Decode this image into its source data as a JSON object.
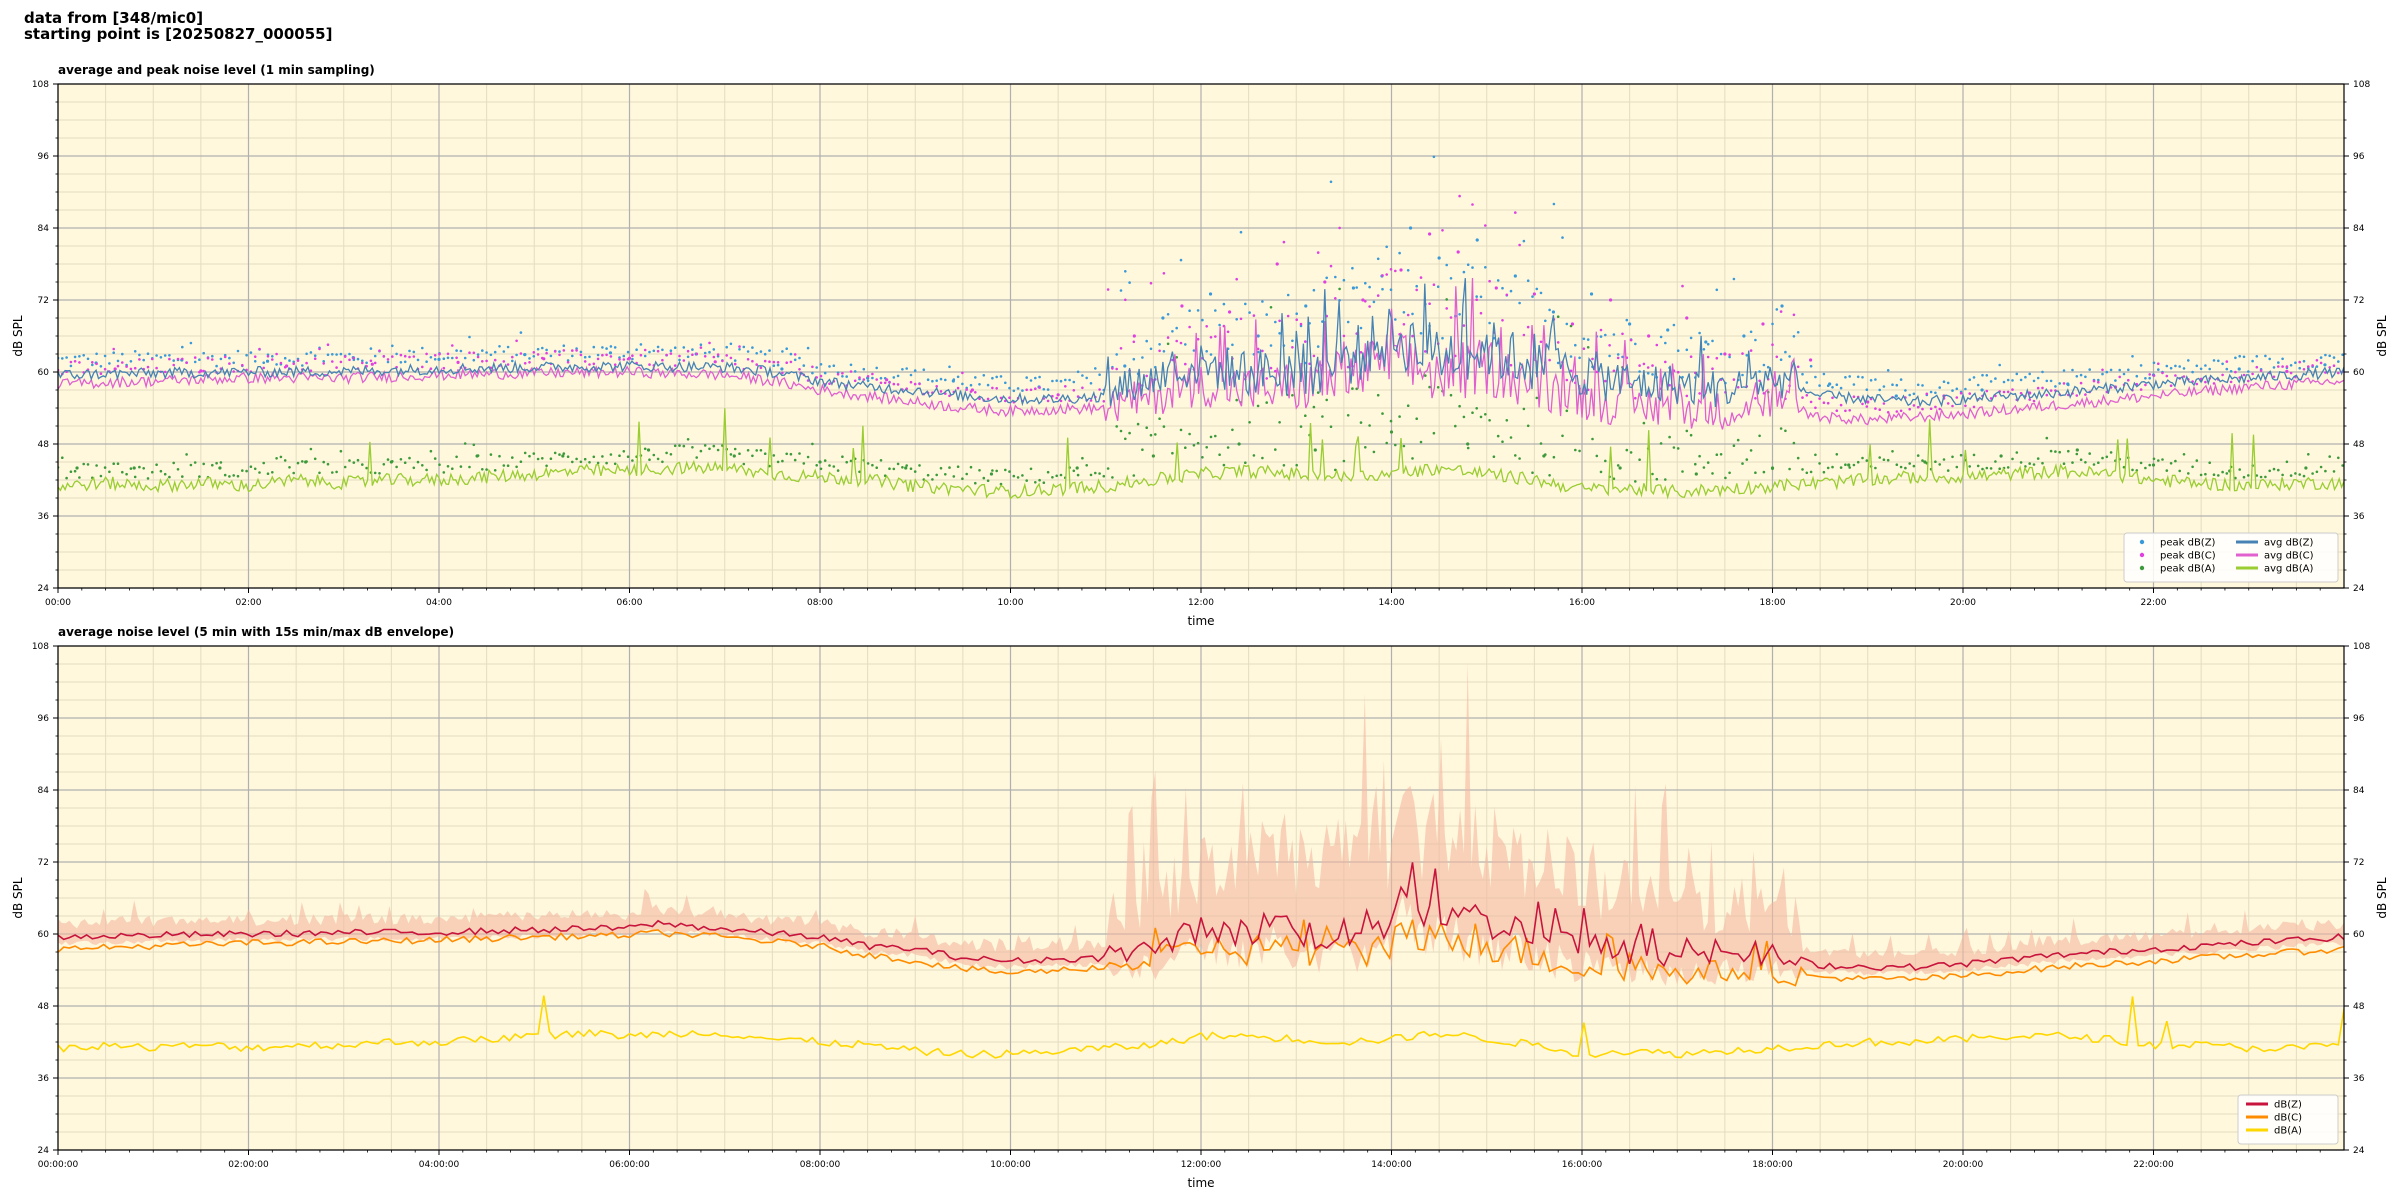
{
  "header": {
    "line1": "data from [348/mic0]",
    "line2": "starting point is [20250827_000055]"
  },
  "colors": {
    "plot_bg": "#fff8dc",
    "grid_major": "#b0b0b0",
    "grid_minor": "#e4dcc0",
    "zpeak": "#3a9ad9",
    "cpeak": "#e040e0",
    "apeak": "#3c9a3c",
    "zavg": "#4682b4",
    "cavg": "#e060d0",
    "aavg": "#9acd32",
    "dBZ": "#c8143c",
    "dBC": "#ff8c00",
    "dBA": "#ffd700",
    "envelope": "#f4b8a0"
  },
  "chart_data": [
    {
      "type": "line",
      "title": "average and peak noise level (1 min sampling)",
      "xlabel": "time",
      "ylabel": "dB SPL",
      "xlim": [
        0,
        24
      ],
      "ylim": [
        24,
        108
      ],
      "yticks": [
        "24",
        "36",
        "48",
        "60",
        "72",
        "84",
        "96",
        "108"
      ],
      "xticks": [
        "00:00",
        "02:00",
        "04:00",
        "06:00",
        "08:00",
        "10:00",
        "12:00",
        "14:00",
        "16:00",
        "18:00",
        "20:00",
        "22:00"
      ],
      "grid": true,
      "legend_position": "lower-right",
      "legend": [
        {
          "label": "peak dB(Z)",
          "marker": "dot",
          "color_key": "zpeak"
        },
        {
          "label": "peak dB(C)",
          "marker": "dot",
          "color_key": "cpeak"
        },
        {
          "label": "peak dB(A)",
          "marker": "dot",
          "color_key": "apeak"
        },
        {
          "label": "avg dB(Z)",
          "marker": "line",
          "color_key": "zavg"
        },
        {
          "label": "avg dB(C)",
          "marker": "line",
          "color_key": "cavg"
        },
        {
          "label": "avg dB(A)",
          "marker": "line",
          "color_key": "aavg"
        }
      ],
      "series": [
        {
          "key": "zavg",
          "x": [
            0,
            1,
            2,
            3,
            4,
            5,
            6,
            7,
            7.5,
            8,
            8.5,
            9,
            9.5,
            10,
            10.5,
            11,
            11.5,
            12,
            12.5,
            13,
            13.5,
            14,
            14.5,
            15,
            15.5,
            16,
            16.5,
            17,
            17.5,
            18,
            18.5,
            19,
            19.5,
            20,
            21,
            22,
            23,
            24
          ],
          "y": [
            59.5,
            59.8,
            60,
            60.1,
            60.5,
            60.8,
            61,
            60.8,
            60,
            58.5,
            57.5,
            57,
            56,
            55.5,
            55.5,
            56,
            59,
            61,
            60,
            60,
            62,
            66,
            63,
            64,
            61,
            60,
            58,
            58,
            57,
            59,
            56,
            55.5,
            55,
            55.5,
            56.5,
            58,
            59,
            60
          ]
        },
        {
          "key": "cavg",
          "x": [
            0,
            1,
            2,
            3,
            4,
            5,
            6,
            7,
            7.5,
            8,
            8.5,
            9,
            9.5,
            10,
            10.5,
            11,
            11.5,
            12,
            12.5,
            13,
            13.5,
            14,
            14.5,
            15,
            15.5,
            16,
            16.5,
            17,
            17.5,
            18,
            18.5,
            19,
            19.5,
            20,
            21,
            22,
            23,
            24
          ],
          "y": [
            58,
            58.5,
            59,
            59,
            59.5,
            59.8,
            60,
            59.5,
            58.5,
            57,
            56,
            55,
            54,
            53.5,
            53.8,
            54,
            56,
            58,
            57,
            57.5,
            59,
            62,
            59.5,
            61,
            58,
            56,
            54.5,
            54,
            53.5,
            55,
            52.5,
            52,
            52.5,
            53,
            54.5,
            56,
            57.5,
            58.5
          ]
        },
        {
          "key": "aavg",
          "x": [
            0,
            0.5,
            1,
            1.5,
            2,
            2.5,
            3,
            3.5,
            4,
            4.5,
            5,
            5.5,
            6,
            6.5,
            7,
            7.5,
            8,
            8.5,
            9,
            9.5,
            10,
            10.5,
            11,
            11.5,
            12,
            12.5,
            13,
            13.5,
            14,
            14.5,
            15,
            15.5,
            16,
            16.5,
            17,
            17.5,
            18,
            18.5,
            19,
            19.5,
            20,
            20.5,
            21,
            21.5,
            22,
            22.5,
            23,
            23.5,
            24
          ],
          "y": [
            41,
            41.5,
            41,
            41.5,
            41,
            42,
            41.5,
            42,
            42,
            42.5,
            43,
            43.5,
            43.5,
            44,
            44,
            43,
            42.5,
            42,
            41,
            40.5,
            40,
            40.5,
            41,
            42,
            43,
            43.5,
            43,
            42.5,
            43,
            44,
            43,
            42,
            40.5,
            40.5,
            40,
            40.5,
            41,
            41.5,
            42,
            42.5,
            42.5,
            43,
            43.5,
            43,
            42,
            41.5,
            41,
            41.5,
            41.5
          ]
        },
        {
          "key": "zpeak",
          "type": "scatter",
          "x": [
            0.4,
            1.3,
            2.2,
            3.1,
            4.0,
            4.9,
            5.8,
            6.7,
            7.6,
            8.5,
            9.4,
            10.3,
            11.2,
            11.6,
            12.1,
            12.6,
            13.1,
            13.6,
            13.9,
            14.2,
            14.5,
            14.9,
            15.3,
            15.7,
            16.1,
            16.5,
            16.9,
            17.3,
            17.7,
            18.1,
            18.6,
            19.3,
            20.2,
            21.1,
            22.0,
            22.9,
            23.8
          ],
          "y": [
            61.5,
            62,
            61.8,
            62.4,
            62.1,
            62.9,
            63.2,
            63,
            60.5,
            59,
            58.5,
            57.5,
            61,
            69,
            73,
            66,
            71,
            74,
            76,
            84,
            79,
            82,
            76,
            70,
            73,
            68,
            67,
            65,
            66,
            71,
            58,
            56,
            57,
            58,
            59.5,
            60.5,
            61.2
          ]
        },
        {
          "key": "cpeak",
          "type": "scatter",
          "x": [
            0.6,
            1.5,
            2.4,
            3.3,
            4.2,
            5.1,
            6.0,
            6.9,
            7.8,
            8.7,
            9.6,
            10.5,
            11.3,
            11.8,
            12.3,
            12.8,
            13.3,
            13.7,
            14.1,
            14.4,
            14.7,
            15.1,
            15.5,
            15.9,
            16.3,
            16.7,
            17.1,
            17.5,
            17.9,
            18.4,
            19.0,
            19.8,
            20.7,
            21.6,
            22.5,
            23.4
          ],
          "y": [
            60.5,
            60.2,
            61,
            61.3,
            61.6,
            62.2,
            62.3,
            61.7,
            59.8,
            58.7,
            57,
            56.2,
            66,
            71,
            70,
            78,
            75,
            72,
            77,
            83,
            80,
            74,
            73,
            68,
            72,
            66,
            69,
            63,
            68,
            62,
            55,
            56,
            56.5,
            57.5,
            58.6,
            60.1
          ]
        },
        {
          "key": "apeak",
          "type": "scatter",
          "x": [
            0.2,
            0.8,
            1.7,
            2.6,
            3.5,
            4.4,
            5.3,
            6.2,
            7.1,
            8.0,
            8.9,
            9.8,
            10.7,
            11.5,
            12.4,
            13.2,
            14.0,
            14.8,
            15.6,
            16.4,
            17.2,
            18.0,
            18.8,
            19.6,
            20.4,
            21.2,
            22.0,
            22.8,
            23.6
          ],
          "y": [
            44,
            44,
            44,
            45,
            45,
            46,
            46,
            47,
            46,
            45,
            44,
            43,
            44,
            46,
            48,
            47,
            50,
            48,
            46,
            44,
            43,
            44,
            44.5,
            45,
            46,
            47,
            44.5,
            43.5,
            44
          ]
        }
      ]
    },
    {
      "type": "line",
      "title": "average noise level (5 min with 15s min/max dB envelope)",
      "xlabel": "time",
      "ylabel": "dB SPL",
      "xlim": [
        0,
        24
      ],
      "ylim": [
        24,
        108
      ],
      "yticks": [
        "24",
        "36",
        "48",
        "60",
        "72",
        "84",
        "96",
        "108"
      ],
      "xticks": [
        "00:00:00",
        "02:00:00",
        "04:00:00",
        "06:00:00",
        "08:00:00",
        "10:00:00",
        "12:00:00",
        "14:00:00",
        "16:00:00",
        "18:00:00",
        "20:00:00",
        "22:00:00"
      ],
      "grid": true,
      "legend_position": "lower-right",
      "legend": [
        {
          "label": "dB(Z)",
          "marker": "line",
          "color_key": "dBZ"
        },
        {
          "label": "dB(C)",
          "marker": "line",
          "color_key": "dBC"
        },
        {
          "label": "dB(A)",
          "marker": "line",
          "color_key": "dBA"
        }
      ],
      "series": [
        {
          "key": "dBZ",
          "x": [
            0,
            1,
            2,
            3,
            4,
            5,
            6,
            6.3,
            7,
            8,
            8.5,
            9,
            9.5,
            10,
            10.5,
            11,
            11.5,
            12,
            12.5,
            12.8,
            13,
            13.5,
            14,
            14.1,
            14.3,
            14.6,
            15,
            15.3,
            15.6,
            16,
            16.5,
            17,
            17.5,
            18,
            18.5,
            19,
            19.5,
            20,
            21,
            22,
            23,
            24
          ],
          "y": [
            59.5,
            59.8,
            60,
            60.2,
            60.3,
            60.7,
            61,
            61.8,
            60.8,
            59.5,
            58,
            57.5,
            56,
            55.5,
            55.8,
            56,
            57.5,
            61,
            60,
            63,
            60,
            60,
            62,
            70,
            63,
            64,
            62,
            61,
            60,
            58,
            57,
            56,
            56.5,
            56.5,
            54.8,
            54.5,
            54.5,
            55,
            56.5,
            57.5,
            58.5,
            59.5
          ]
        },
        {
          "key": "dBC",
          "x": [
            0,
            1,
            2,
            3,
            4,
            5,
            6,
            6.3,
            7,
            8,
            8.5,
            9,
            9.5,
            10,
            10.5,
            11,
            11.5,
            12,
            12.5,
            12.8,
            13,
            13.5,
            14,
            14.1,
            14.3,
            14.6,
            15,
            15.3,
            15.6,
            16,
            16.5,
            17,
            17.5,
            18,
            18.5,
            19,
            19.5,
            20,
            21,
            22,
            23,
            24
          ],
          "y": [
            57.5,
            58,
            58.5,
            58.7,
            59,
            59.5,
            59.8,
            60.2,
            59.5,
            58,
            56.5,
            55.5,
            54.2,
            53.5,
            54,
            54.5,
            55.5,
            58,
            57,
            59,
            56.5,
            56.5,
            58,
            64,
            58.5,
            59.5,
            58,
            57.5,
            56,
            54.5,
            53.5,
            53.5,
            53.8,
            53.5,
            52.8,
            52.5,
            52.5,
            53,
            54.5,
            55.5,
            56.5,
            57.5
          ]
        },
        {
          "key": "dBA",
          "x": [
            0,
            0.5,
            1,
            1.5,
            2,
            2.5,
            3,
            3.5,
            4,
            4.5,
            5,
            5.5,
            6,
            6.5,
            7,
            7.5,
            8,
            8.5,
            9,
            9.5,
            10,
            10.5,
            11,
            11.5,
            12,
            12.5,
            13,
            13.5,
            14,
            14.5,
            15,
            15.5,
            16,
            16.5,
            17,
            17.5,
            18,
            18.5,
            19,
            19.5,
            20,
            20.5,
            21,
            21.5,
            22,
            22.5,
            23,
            23.5,
            24
          ],
          "y": [
            41,
            41.5,
            41,
            41.5,
            41,
            41.5,
            41.5,
            42,
            42,
            42.5,
            43,
            43.5,
            43,
            43.5,
            43.5,
            42.5,
            42,
            41.5,
            40.5,
            40,
            40,
            40.5,
            41,
            41.5,
            43,
            43,
            42.5,
            42,
            42.5,
            43.5,
            42.5,
            41.5,
            40,
            40.5,
            40,
            40.5,
            41,
            41.5,
            42,
            42,
            42.5,
            43,
            43,
            42.5,
            41.5,
            41.5,
            41,
            41,
            41.5
          ]
        }
      ]
    }
  ]
}
